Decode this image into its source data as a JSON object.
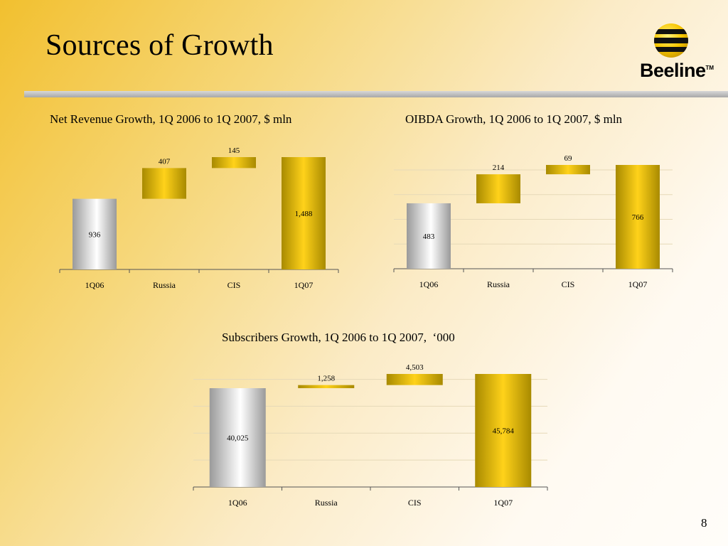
{
  "page": {
    "title": "Sources of Growth",
    "number": "8",
    "logo_text": "Beeline",
    "logo_tm": "TM"
  },
  "colors": {
    "gold_dark": "#a88a00",
    "gold_light": "#ffd21a",
    "silver_dark": "#9a9a9a",
    "silver_light": "#ffffff"
  },
  "chart_data": [
    {
      "type": "bar",
      "subtype": "waterfall",
      "title": "Net Revenue Growth, 1Q 2006 to 1Q 2007, $ mln",
      "categories": [
        "1Q06",
        "Russia",
        "CIS",
        "1Q07"
      ],
      "values": [
        936,
        407,
        145,
        1488
      ],
      "value_labels": [
        "936",
        "407",
        "145",
        "1,488"
      ],
      "kinds": [
        "base",
        "step",
        "step",
        "total"
      ],
      "ylim": [
        0,
        1488
      ],
      "grid": false
    },
    {
      "type": "bar",
      "subtype": "waterfall",
      "title": "OIBDA Growth, 1Q 2006 to 1Q 2007, $ mln",
      "categories": [
        "1Q06",
        "Russia",
        "CIS",
        "1Q07"
      ],
      "values": [
        483,
        214,
        69,
        766
      ],
      "value_labels": [
        "483",
        "214",
        "69",
        "766"
      ],
      "kinds": [
        "base",
        "step",
        "step",
        "total"
      ],
      "ylim": [
        0,
        766
      ],
      "grid": true
    },
    {
      "type": "bar",
      "subtype": "waterfall",
      "title": "Subscribers Growth, 1Q 2006 to 1Q 2007,  ‘000",
      "categories": [
        "1Q06",
        "Russia",
        "CIS",
        "1Q07"
      ],
      "values": [
        40025,
        1258,
        4503,
        45784
      ],
      "value_labels": [
        "40,025",
        "1,258",
        "4,503",
        "45,784"
      ],
      "kinds": [
        "base",
        "step",
        "step",
        "total"
      ],
      "ylim": [
        0,
        45784
      ],
      "grid": true
    }
  ]
}
